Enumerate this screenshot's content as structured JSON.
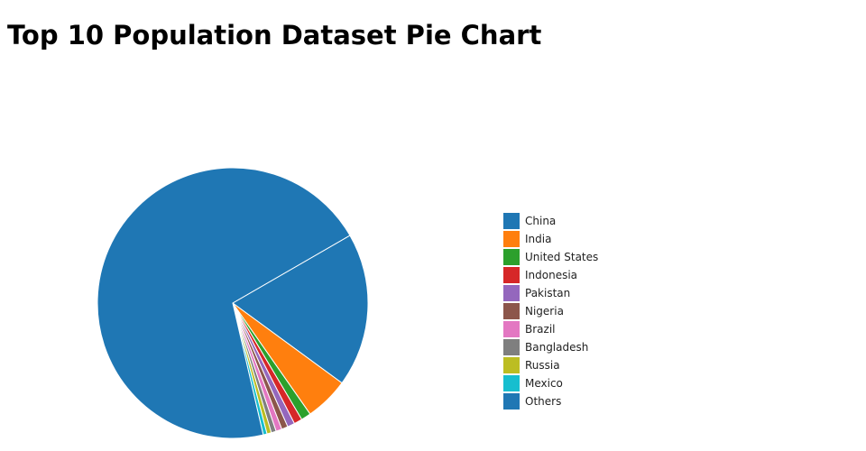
{
  "chart_data": {
    "type": "pie",
    "title": "Top 10 Population Dataset Pie Chart",
    "categories": [
      "China",
      "India",
      "United States",
      "Indonesia",
      "Pakistan",
      "Nigeria",
      "Brazil",
      "Bangladesh",
      "Russia",
      "Mexico",
      "Others"
    ],
    "values": [
      1439,
      411,
      92,
      77,
      68,
      59,
      56,
      46,
      41,
      36,
      5500
    ],
    "colors": [
      "#1f77b4",
      "#ff7f0e",
      "#2ca02c",
      "#d62728",
      "#9467bd",
      "#8c564b",
      "#e377c2",
      "#7f7f7f",
      "#bcbd22",
      "#17becf",
      "#1f77b4"
    ],
    "legend_position": "right",
    "start_angle_deg": 60,
    "direction": "clockwise"
  }
}
